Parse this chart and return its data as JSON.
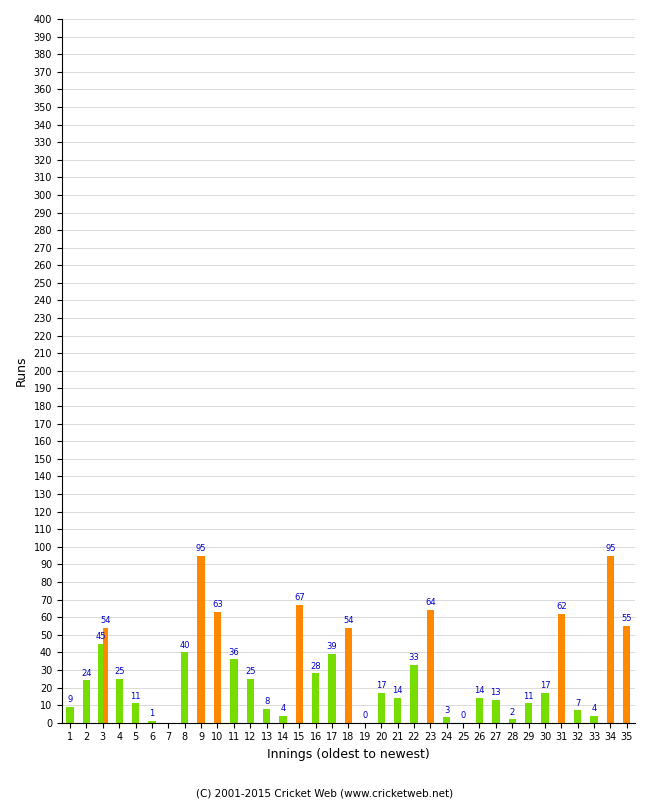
{
  "xlabel": "Innings (oldest to newest)",
  "ylabel": "Runs",
  "footer": "(C) 2001-2015 Cricket Web (www.cricketweb.net)",
  "green_color": "#77dd00",
  "orange_color": "#ff8800",
  "label_color": "#0000cc",
  "bg_color": "#ffffff",
  "grid_color": "#cccccc",
  "ylim": [
    0,
    400
  ],
  "yticks": [
    0,
    10,
    20,
    30,
    40,
    50,
    60,
    70,
    80,
    90,
    100,
    110,
    120,
    130,
    140,
    150,
    160,
    170,
    180,
    190,
    200,
    210,
    220,
    230,
    240,
    250,
    260,
    270,
    280,
    290,
    300,
    310,
    320,
    330,
    340,
    350,
    360,
    370,
    380,
    390,
    400
  ],
  "bars": [
    {
      "innings": 1,
      "value": 9,
      "color": "green"
    },
    {
      "innings": 2,
      "value": 24,
      "color": "green"
    },
    {
      "innings": 3,
      "value": 45,
      "color": "green"
    },
    {
      "innings": 3,
      "value": 54,
      "color": "orange"
    },
    {
      "innings": 4,
      "value": 25,
      "color": "green"
    },
    {
      "innings": 5,
      "value": 11,
      "color": "green"
    },
    {
      "innings": 6,
      "value": 1,
      "color": "green"
    },
    {
      "innings": 8,
      "value": 40,
      "color": "green"
    },
    {
      "innings": 9,
      "value": 95,
      "color": "orange"
    },
    {
      "innings": 10,
      "value": 63,
      "color": "orange"
    },
    {
      "innings": 11,
      "value": 36,
      "color": "green"
    },
    {
      "innings": 12,
      "value": 25,
      "color": "green"
    },
    {
      "innings": 13,
      "value": 8,
      "color": "green"
    },
    {
      "innings": 14,
      "value": 4,
      "color": "green"
    },
    {
      "innings": 15,
      "value": 67,
      "color": "orange"
    },
    {
      "innings": 16,
      "value": 28,
      "color": "green"
    },
    {
      "innings": 17,
      "value": 39,
      "color": "green"
    },
    {
      "innings": 18,
      "value": 54,
      "color": "orange"
    },
    {
      "innings": 19,
      "value": 0,
      "color": "green"
    },
    {
      "innings": 20,
      "value": 17,
      "color": "green"
    },
    {
      "innings": 21,
      "value": 14,
      "color": "green"
    },
    {
      "innings": 22,
      "value": 33,
      "color": "green"
    },
    {
      "innings": 23,
      "value": 64,
      "color": "orange"
    },
    {
      "innings": 24,
      "value": 3,
      "color": "green"
    },
    {
      "innings": 25,
      "value": 0,
      "color": "green"
    },
    {
      "innings": 26,
      "value": 14,
      "color": "green"
    },
    {
      "innings": 27,
      "value": 13,
      "color": "green"
    },
    {
      "innings": 28,
      "value": 2,
      "color": "green"
    },
    {
      "innings": 29,
      "value": 11,
      "color": "green"
    },
    {
      "innings": 30,
      "value": 17,
      "color": "green"
    },
    {
      "innings": 31,
      "value": 62,
      "color": "orange"
    },
    {
      "innings": 32,
      "value": 7,
      "color": "green"
    },
    {
      "innings": 33,
      "value": 4,
      "color": "green"
    },
    {
      "innings": 34,
      "value": 95,
      "color": "orange"
    },
    {
      "innings": 35,
      "value": 55,
      "color": "orange"
    }
  ]
}
